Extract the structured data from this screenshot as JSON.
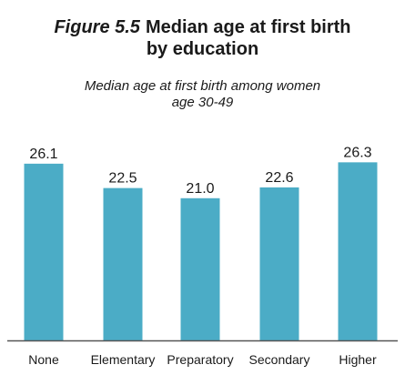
{
  "figure": {
    "label": "Figure 5.5",
    "title_line1": "Median age at first birth",
    "title_line2": "by education",
    "subtitle_line1": "Median age at first birth among women",
    "subtitle_line2": "age 30-49"
  },
  "colors": {
    "bar": "#4bacc6",
    "axis": "#555555",
    "text": "#1a1a1a"
  },
  "chart_data": {
    "type": "bar",
    "title": "Median age at first birth by education",
    "subtitle": "Median age at first birth among women age 30-49",
    "categories": [
      "None",
      "Elementary",
      "Preparatory",
      "Secondary",
      "Higher"
    ],
    "values": [
      26.1,
      22.5,
      21.0,
      22.6,
      26.3
    ],
    "value_labels": [
      "26.1",
      "22.5",
      "21.0",
      "22.6",
      "26.3"
    ],
    "xlabel": "",
    "ylabel": "",
    "ylim": [
      0,
      32.8
    ],
    "grid": false,
    "legend": "none"
  }
}
